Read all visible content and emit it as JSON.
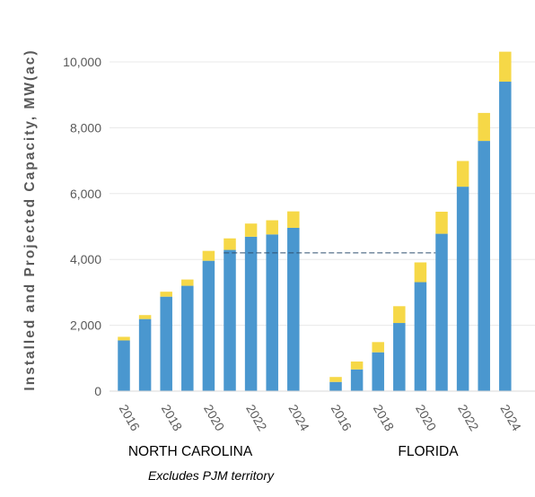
{
  "chart_data": {
    "type": "bar",
    "stacked": true,
    "ylabel": "Installed and Projected Capacity, MW(ac)",
    "ylim": [
      0,
      11000
    ],
    "yticks": [
      0,
      2000,
      4000,
      6000,
      8000,
      10000
    ],
    "ytick_labels": [
      "0",
      "2,000",
      "4,000",
      "6,000",
      "8,000",
      "10,000"
    ],
    "grid": true,
    "colors": {
      "base": "#4a97cf",
      "top": "#f6d847",
      "reference_line": "#2f4f6f"
    },
    "reference_line": {
      "y": 4200,
      "style": "dashed"
    },
    "groups": [
      {
        "label": "NORTH CAROLINA",
        "years": [
          2016,
          2017,
          2018,
          2019,
          2020,
          2021,
          2022,
          2023,
          2024
        ],
        "x_tick_labels": [
          "2016",
          "2018",
          "2020",
          "2022",
          "2024"
        ],
        "series": [
          {
            "values": [
              1540,
              2190,
              2870,
              3200,
              3960,
              4290,
              4690,
              4760,
              4960
            ]
          },
          {
            "values": [
              110,
              120,
              150,
              190,
              300,
              350,
              400,
              430,
              500
            ]
          }
        ]
      },
      {
        "label": "FLORIDA",
        "years": [
          2016,
          2017,
          2018,
          2019,
          2020,
          2021,
          2022,
          2023,
          2024
        ],
        "x_tick_labels": [
          "2016",
          "2018",
          "2020",
          "2022",
          "2024"
        ],
        "series": [
          {
            "values": [
              280,
              660,
              1180,
              2070,
              3310,
              4780,
              6210,
              7600,
              9400
            ]
          },
          {
            "values": [
              150,
              240,
              310,
              510,
              600,
              670,
              780,
              850,
              910
            ]
          }
        ]
      }
    ],
    "annotations": [
      "Excludes PJM territory"
    ]
  }
}
